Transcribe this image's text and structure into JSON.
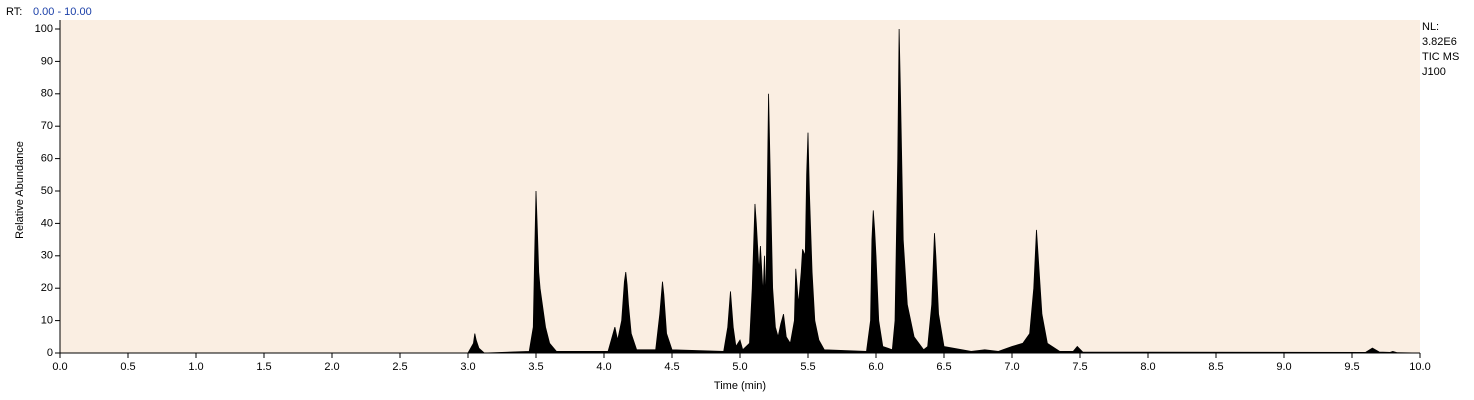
{
  "chart_data": {
    "type": "area",
    "range_label": "RT:",
    "range_value": "0.00 - 10.00",
    "ylabel": "Relative Abundance",
    "xlabel": "Time (min)",
    "annotations": [
      "NL:",
      "3.82E6",
      "TIC  MS",
      "J100"
    ],
    "color": "#000000",
    "background": "#faeee2",
    "x": [
      0,
      3.0,
      3.04,
      3.05,
      3.06,
      3.08,
      3.12,
      3.45,
      3.48,
      3.49,
      3.5,
      3.51,
      3.52,
      3.53,
      3.54,
      3.55,
      3.57,
      3.6,
      3.65,
      4.03,
      4.06,
      4.08,
      4.1,
      4.13,
      4.15,
      4.16,
      4.17,
      4.18,
      4.2,
      4.24,
      4.38,
      4.41,
      4.43,
      4.44,
      4.46,
      4.5,
      4.88,
      4.91,
      4.93,
      4.95,
      4.97,
      5.0,
      5.02,
      5.07,
      5.09,
      5.11,
      5.12,
      5.14,
      5.15,
      5.17,
      5.18,
      5.19,
      5.21,
      5.22,
      5.24,
      5.26,
      5.28,
      5.3,
      5.32,
      5.34,
      5.37,
      5.4,
      5.41,
      5.43,
      5.45,
      5.46,
      5.48,
      5.49,
      5.5,
      5.51,
      5.53,
      5.55,
      5.58,
      5.62,
      5.93,
      5.96,
      5.97,
      5.98,
      5.99,
      6.0,
      6.02,
      6.05,
      6.12,
      6.14,
      6.16,
      6.17,
      6.18,
      6.2,
      6.23,
      6.28,
      6.35,
      6.38,
      6.41,
      6.43,
      6.44,
      6.46,
      6.5,
      6.7,
      6.8,
      6.9,
      7.0,
      7.08,
      7.13,
      7.16,
      7.18,
      7.2,
      7.22,
      7.26,
      7.35,
      7.45,
      7.48,
      7.52,
      9.6,
      9.65,
      9.7,
      9.78,
      9.8,
      9.83,
      10.0
    ],
    "values": [
      0,
      0,
      3,
      6,
      4,
      1.5,
      0,
      0.5,
      8,
      30,
      50,
      38,
      25,
      20,
      17,
      14,
      8,
      3,
      0.5,
      0.5,
      5,
      8,
      4,
      10,
      22,
      25,
      21,
      15,
      6,
      1,
      1,
      12,
      22,
      18,
      6,
      1,
      0.5,
      8,
      19,
      8,
      2,
      4,
      1,
      3,
      20,
      46,
      40,
      25,
      33,
      18,
      30,
      15,
      80,
      60,
      20,
      8,
      5,
      9,
      12,
      5,
      3,
      10,
      26,
      15,
      25,
      32,
      30,
      55,
      68,
      50,
      25,
      10,
      4,
      1,
      0.5,
      10,
      35,
      44,
      38,
      30,
      10,
      2,
      1,
      10,
      60,
      100,
      80,
      35,
      15,
      5,
      1,
      2,
      15,
      37,
      30,
      12,
      2,
      0.5,
      1,
      0.5,
      2,
      3,
      6,
      20,
      38,
      25,
      12,
      3,
      0.5,
      0.5,
      2,
      0.3,
      0.2,
      1.5,
      0.3,
      0.2,
      0.5,
      0.1,
      0
    ],
    "xlim": [
      0,
      10
    ],
    "ylim": [
      0,
      100
    ],
    "xticks": [
      {
        "value": 0,
        "label": "0.0"
      },
      {
        "value": 0.5,
        "label": "0.5"
      },
      {
        "value": 1,
        "label": "1.0"
      },
      {
        "value": 1.5,
        "label": "1.5"
      },
      {
        "value": 2,
        "label": "2.0"
      },
      {
        "value": 2.5,
        "label": "2.5"
      },
      {
        "value": 3,
        "label": "3.0"
      },
      {
        "value": 3.5,
        "label": "3.5"
      },
      {
        "value": 4,
        "label": "4.0"
      },
      {
        "value": 4.5,
        "label": "4.5"
      },
      {
        "value": 5,
        "label": "5.0"
      },
      {
        "value": 5.5,
        "label": "5.5"
      },
      {
        "value": 6,
        "label": "6.0"
      },
      {
        "value": 6.5,
        "label": "6.5"
      },
      {
        "value": 7,
        "label": "7.0"
      },
      {
        "value": 7.5,
        "label": "7.5"
      },
      {
        "value": 8,
        "label": "8.0"
      },
      {
        "value": 8.5,
        "label": "8.5"
      },
      {
        "value": 9,
        "label": "9.0"
      },
      {
        "value": 9.5,
        "label": "9.5"
      },
      {
        "value": 10,
        "label": "10.0"
      }
    ],
    "yticks": [
      0,
      10,
      20,
      30,
      40,
      50,
      60,
      70,
      80,
      90,
      100
    ]
  }
}
